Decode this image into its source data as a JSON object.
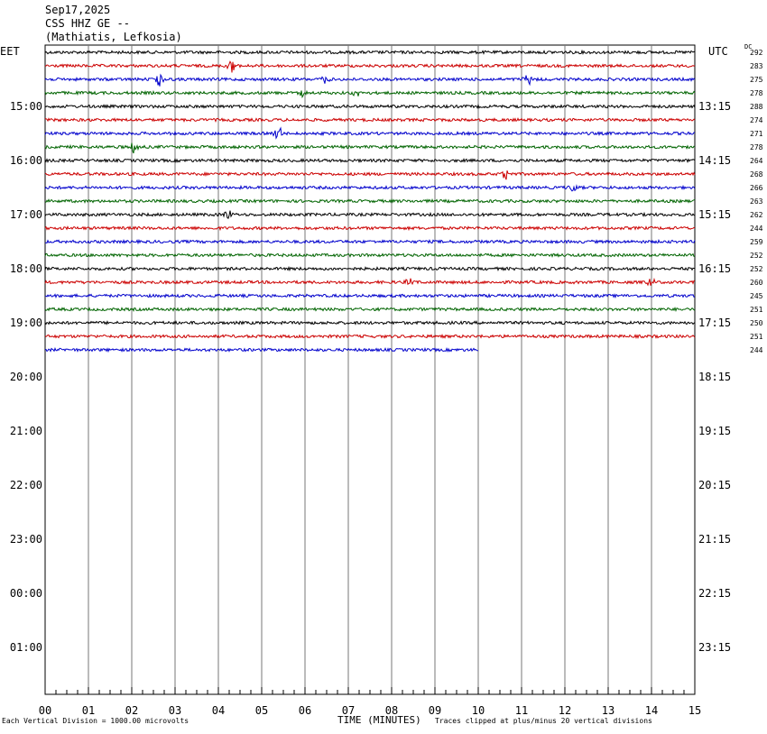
{
  "header": {
    "date": "Sep17,2025",
    "station": "CSS HHZ GE --",
    "location": "(Mathiatis, Lefkosia)"
  },
  "tz": {
    "left": "EET",
    "right": "UTC",
    "dc": "DC"
  },
  "footer": {
    "left": "Each Vertical Division = 1000.00 microvolts",
    "center": "TIME (MINUTES)",
    "right": "Traces clipped at plus/minus 20 vertical divisions"
  },
  "colors": {
    "trace_cycle": [
      "#000000",
      "#cc0000",
      "#0000cc",
      "#006400"
    ],
    "grid": "#777777"
  },
  "chart_data": {
    "type": "line",
    "x_axis": {
      "label": "TIME (MINUTES)",
      "range": [
        0,
        15
      ],
      "ticks": [
        "00",
        "01",
        "02",
        "03",
        "04",
        "05",
        "06",
        "07",
        "08",
        "09",
        "10",
        "11",
        "12",
        "13",
        "14",
        "15"
      ]
    },
    "left_time_labels": [
      "15:00",
      "16:00",
      "17:00",
      "18:00",
      "19:00",
      "20:00",
      "21:00",
      "22:00",
      "23:00",
      "00:00",
      "01:00"
    ],
    "right_time_labels": [
      "13:15",
      "14:15",
      "15:15",
      "16:15",
      "17:15",
      "18:15",
      "19:15",
      "20:15",
      "21:15",
      "22:15",
      "23:15"
    ],
    "dc_offsets": [
      292,
      283,
      275,
      278,
      288,
      274,
      271,
      278,
      264,
      268,
      266,
      263,
      262,
      244,
      259,
      252,
      252,
      260,
      245,
      251,
      250,
      251,
      244
    ],
    "trace_durations_min": [
      15,
      15,
      15,
      15,
      15,
      15,
      15,
      15,
      15,
      15,
      15,
      15,
      15,
      15,
      15,
      15,
      15,
      15,
      15,
      15,
      15,
      15,
      10
    ],
    "events": [
      {
        "trace": 1,
        "minute": 4.3,
        "amp": 7
      },
      {
        "trace": 2,
        "minute": 2.65,
        "amp": 8
      },
      {
        "trace": 2,
        "minute": 6.45,
        "amp": 4
      },
      {
        "trace": 2,
        "minute": 11.15,
        "amp": 8
      },
      {
        "trace": 3,
        "minute": 5.95,
        "amp": 6
      },
      {
        "trace": 3,
        "minute": 7.2,
        "amp": 4
      },
      {
        "trace": 6,
        "minute": 5.4,
        "amp": 8
      },
      {
        "trace": 7,
        "minute": 2.05,
        "amp": 7
      },
      {
        "trace": 9,
        "minute": 10.65,
        "amp": 6
      },
      {
        "trace": 10,
        "minute": 12.2,
        "amp": 5
      },
      {
        "trace": 12,
        "minute": 4.2,
        "amp": 7
      },
      {
        "trace": 17,
        "minute": 8.4,
        "amp": 4
      },
      {
        "trace": 17,
        "minute": 14.0,
        "amp": 5
      }
    ]
  }
}
